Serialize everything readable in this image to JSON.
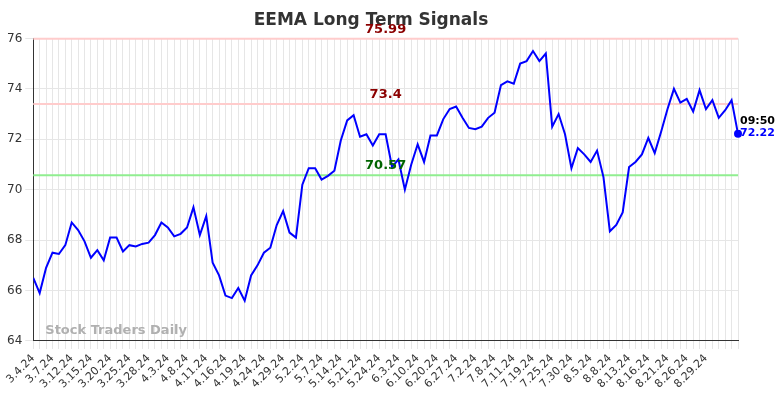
{
  "chart_data": {
    "type": "line",
    "title": "EEMA Long Term Signals",
    "categories": [
      "3.4.24",
      null,
      null,
      "3.7.24",
      null,
      null,
      "3.12.24",
      null,
      null,
      "3.15.24",
      null,
      null,
      "3.20.24",
      null,
      null,
      "3.25.24",
      null,
      null,
      "3.28.24",
      null,
      null,
      "4.3.24",
      null,
      null,
      "4.8.24",
      null,
      null,
      "4.11.24",
      null,
      null,
      "4.16.24",
      null,
      null,
      "4.19.24",
      null,
      null,
      "4.24.24",
      null,
      null,
      "4.29.24",
      null,
      null,
      "5.2.24",
      null,
      null,
      "5.7.24",
      null,
      null,
      "5.14.24",
      null,
      null,
      "5.21.24",
      null,
      null,
      "5.24.24",
      null,
      null,
      "6.3.24",
      null,
      null,
      "6.10.24",
      null,
      null,
      "6.20.24",
      null,
      null,
      "6.27.24",
      null,
      null,
      "7.2.24",
      null,
      null,
      "7.8.24",
      null,
      null,
      "7.11.24",
      null,
      null,
      "7.19.24",
      null,
      null,
      "7.25.24",
      null,
      null,
      "7.30.24",
      null,
      null,
      "8.5.24",
      null,
      null,
      "8.8.24",
      null,
      null,
      "8.13.24",
      null,
      null,
      "8.16.24",
      null,
      null,
      "8.21.24",
      null,
      null,
      "8.26.24",
      null,
      null,
      "8.29.24",
      null,
      null,
      null,
      null,
      null
    ],
    "values": [
      66.5,
      65.9,
      66.9,
      67.5,
      67.45,
      67.8,
      68.7,
      68.4,
      67.95,
      67.3,
      67.6,
      67.2,
      68.1,
      68.1,
      67.55,
      67.8,
      67.75,
      67.85,
      67.9,
      68.2,
      68.7,
      68.5,
      68.15,
      68.25,
      68.5,
      69.3,
      68.2,
      68.95,
      67.1,
      66.6,
      65.8,
      65.7,
      66.1,
      65.6,
      66.6,
      67.0,
      67.5,
      67.7,
      68.6,
      69.15,
      68.3,
      68.1,
      70.2,
      70.85,
      70.85,
      70.4,
      70.55,
      70.75,
      71.95,
      72.75,
      72.95,
      72.1,
      72.2,
      71.75,
      72.2,
      72.2,
      70.9,
      71.2,
      70.0,
      71.0,
      71.8,
      71.1,
      72.15,
      72.15,
      72.8,
      73.2,
      73.3,
      72.85,
      72.45,
      72.4,
      72.5,
      72.85,
      73.05,
      74.15,
      74.3,
      74.2,
      75.0,
      75.1,
      75.5,
      75.1,
      75.4,
      72.5,
      73.0,
      72.2,
      70.85,
      71.65,
      71.4,
      71.1,
      71.55,
      70.5,
      68.35,
      68.6,
      69.1,
      70.9,
      71.1,
      71.4,
      72.05,
      71.45,
      72.3,
      73.2,
      74.0,
      73.45,
      73.6,
      73.1,
      73.95,
      73.2,
      73.55,
      72.85,
      73.15,
      73.55,
      72.22
    ],
    "color": "#0000ff",
    "ylim": [
      64,
      76
    ],
    "yticks": [
      64,
      66,
      68,
      70,
      72,
      74,
      76
    ],
    "grid": true,
    "reference_lines": [
      {
        "value": 75.99,
        "label": "75.99",
        "color": "#ffcccc"
      },
      {
        "value": 73.4,
        "label": "73.4",
        "color": "#ffcccc"
      },
      {
        "value": 70.57,
        "label": "70.57",
        "color": "#90ee90"
      }
    ],
    "last_point": {
      "time": "09:50",
      "value": 72.22
    },
    "watermark": "Stock Traders Daily"
  }
}
